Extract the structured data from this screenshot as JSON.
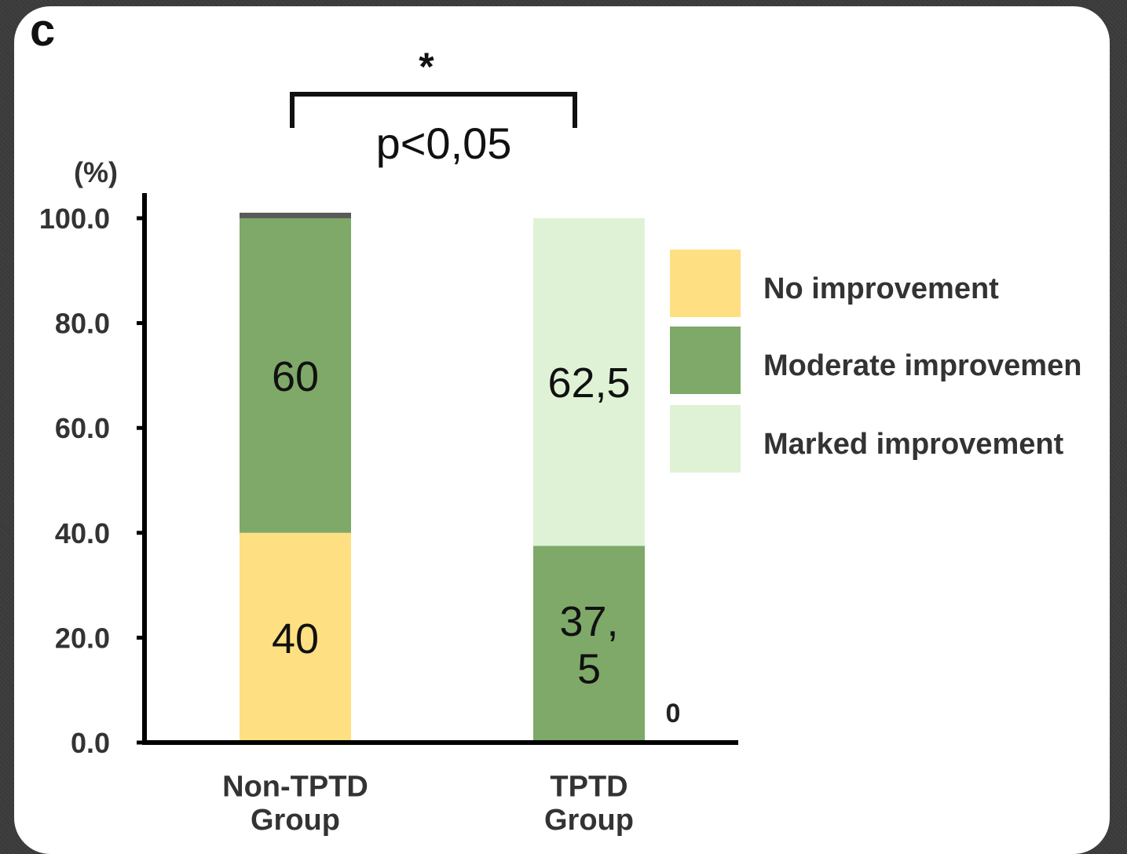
{
  "panel_letter": "c",
  "significance": {
    "star": "*",
    "pvalue": "p<0,05"
  },
  "colors": {
    "no_improvement": "#fedf82",
    "moderate_improvement": "#7ea968",
    "marked_improvement": "#dff2d6",
    "axis": "#000000",
    "tick_text": "#333333"
  },
  "chart_data": {
    "type": "bar",
    "stacked": true,
    "ylabel": "(%)",
    "ylim": [
      0,
      100
    ],
    "yticks": [
      "0.0",
      "20.0",
      "40.0",
      "60.0",
      "80.0",
      "100.0"
    ],
    "categories": [
      "Non-TPTD\nGroup",
      "TPTD\nGroup"
    ],
    "series": [
      {
        "name": "No improvement",
        "values": [
          40,
          0
        ],
        "labels": [
          "40",
          "0"
        ]
      },
      {
        "name": "Moderate improvement",
        "values": [
          60,
          37.5
        ],
        "labels": [
          "60",
          "37,\n5"
        ]
      },
      {
        "name": "Marked improvement",
        "values": [
          0,
          62.5
        ],
        "labels": [
          "",
          "62,5"
        ]
      }
    ],
    "legend": {
      "position": "right",
      "entries": [
        "No improvement",
        "Moderate improvemen",
        "Marked improvement"
      ]
    },
    "grid": false
  }
}
